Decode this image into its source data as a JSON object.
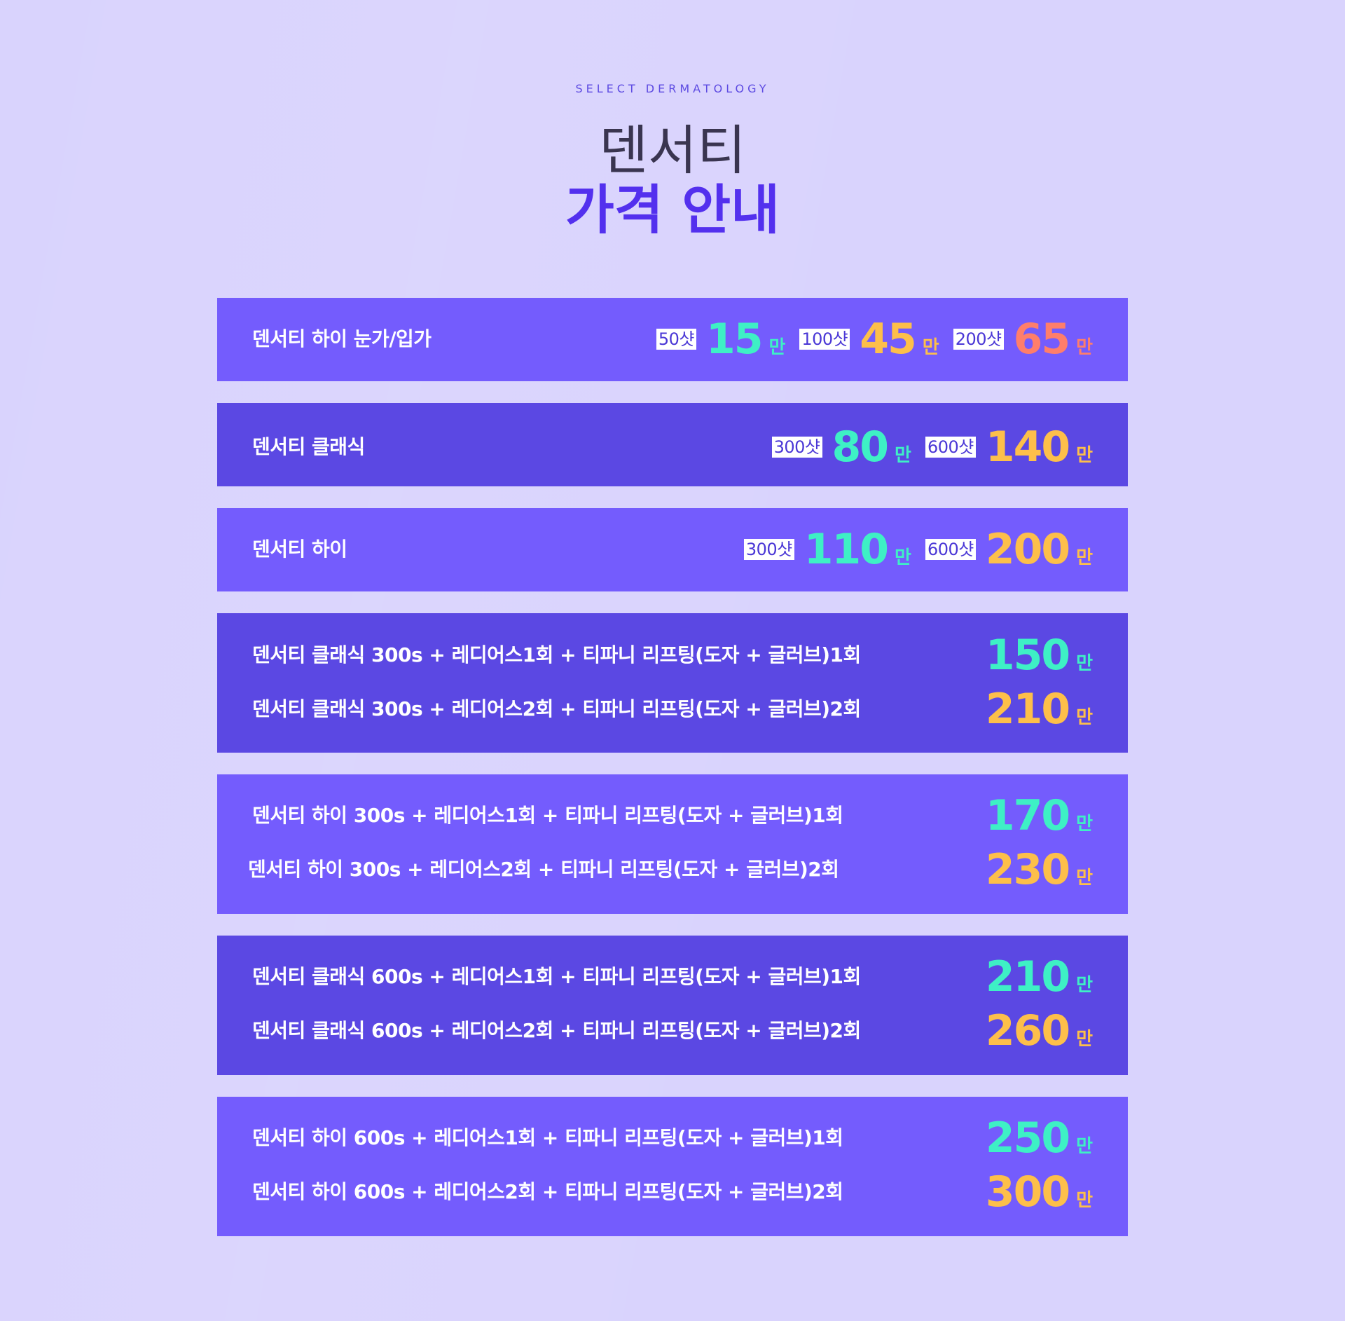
{
  "header": {
    "eyebrow": "SELECT DERMATOLOGY",
    "title_line1": "덴서티",
    "title_line2": "가격 안내"
  },
  "colors": {
    "background": "#d9d3fd",
    "card_light": "#745cfd",
    "card_dark": "#5b48e3",
    "price_teal": "#3ef0c5",
    "price_orange": "#fdbf4a",
    "price_coral": "#ff7e6a",
    "title_accent": "#5330ee"
  },
  "cards": [
    {
      "rows": [
        {
          "label": "덴서티 하이 눈가/입가",
          "prices": [
            {
              "shots": "50샷",
              "amount": "15",
              "unit": "만"
            },
            {
              "shots": "100샷",
              "amount": "45",
              "unit": "만"
            },
            {
              "shots": "200샷",
              "amount": "65",
              "unit": "만"
            }
          ]
        }
      ]
    },
    {
      "rows": [
        {
          "label": "덴서티 클래식",
          "prices": [
            {
              "shots": "300샷",
              "amount": "80",
              "unit": "만"
            },
            {
              "shots": "600샷",
              "amount": "140",
              "unit": "만"
            }
          ]
        }
      ]
    },
    {
      "rows": [
        {
          "label": "덴서티 하이",
          "prices": [
            {
              "shots": "300샷",
              "amount": "110",
              "unit": "만"
            },
            {
              "shots": "600샷",
              "amount": "200",
              "unit": "만"
            }
          ]
        }
      ]
    },
    {
      "rows": [
        {
          "label": "덴서티 클래식 300s + 레디어스1회 + 티파니 리프팅(도자 + 글러브)1회",
          "prices": [
            {
              "amount": "150",
              "unit": "만"
            }
          ]
        },
        {
          "label": "덴서티 클래식 300s + 레디어스2회 + 티파니 리프팅(도자 + 글러브)2회",
          "prices": [
            {
              "amount": "210",
              "unit": "만"
            }
          ]
        }
      ]
    },
    {
      "rows": [
        {
          "label": "덴서티 하이 300s + 레디어스1회 + 티파니 리프팅(도자 + 글러브)1회",
          "prices": [
            {
              "amount": "170",
              "unit": "만"
            }
          ]
        },
        {
          "label": "덴서티 하이 300s + 레디어스2회 + 티파니 리프팅(도자 + 글러브)2회",
          "prices": [
            {
              "amount": "230",
              "unit": "만"
            }
          ]
        }
      ]
    },
    {
      "rows": [
        {
          "label": "덴서티 클래식 600s + 레디어스1회 + 티파니 리프팅(도자 + 글러브)1회",
          "prices": [
            {
              "amount": "210",
              "unit": "만"
            }
          ]
        },
        {
          "label": "덴서티 클래식 600s + 레디어스2회 + 티파니 리프팅(도자 + 글러브)2회",
          "prices": [
            {
              "amount": "260",
              "unit": "만"
            }
          ]
        }
      ]
    },
    {
      "rows": [
        {
          "label": "덴서티 하이 600s + 레디어스1회 + 티파니 리프팅(도자 + 글러브)1회",
          "prices": [
            {
              "amount": "250",
              "unit": "만"
            }
          ]
        },
        {
          "label": "덴서티 하이 600s + 레디어스2회 + 티파니 리프팅(도자 + 글러브)2회",
          "prices": [
            {
              "amount": "300",
              "unit": "만"
            }
          ]
        }
      ]
    }
  ]
}
